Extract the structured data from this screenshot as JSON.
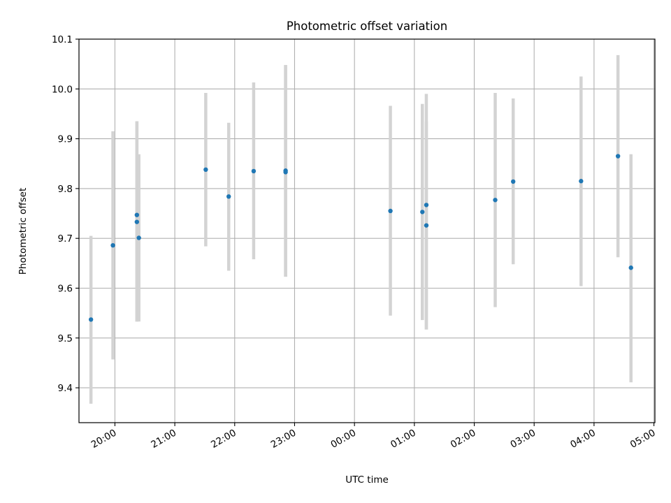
{
  "chart_data": {
    "type": "scatter",
    "title": "Photometric offset variation",
    "xlabel": "UTC time",
    "ylabel": "Photometric offset",
    "xlim": [
      "19:24",
      "05:01"
    ],
    "ylim": [
      9.33,
      10.1
    ],
    "x_ticks": [
      "20:00",
      "21:00",
      "22:00",
      "23:00",
      "00:00",
      "01:00",
      "02:00",
      "03:00",
      "04:00",
      "05:00"
    ],
    "y_ticks": [
      "9.4",
      "9.5",
      "9.6",
      "9.7",
      "9.8",
      "9.9",
      "10.0",
      "10.1"
    ],
    "grid": true,
    "error_bars": "vertical",
    "colors": {
      "points": "#1f77b4",
      "error_bars": "#d3d3d3",
      "grid": "#b0b0b0",
      "axes": "#000000"
    },
    "points": [
      {
        "x": "19:36",
        "y": 9.537,
        "y_low": 9.368,
        "y_high": 9.705
      },
      {
        "x": "19:58",
        "y": 9.686,
        "y_low": 9.457,
        "y_high": 9.915
      },
      {
        "x": "20:22",
        "y": 9.733,
        "y_low": 9.533,
        "y_high": 9.935
      },
      {
        "x": "20:22",
        "y": 9.747,
        "y_low": 9.533,
        "y_high": 9.935
      },
      {
        "x": "20:24",
        "y": 9.701,
        "y_low": 9.533,
        "y_high": 9.869
      },
      {
        "x": "21:31",
        "y": 9.838,
        "y_low": 9.684,
        "y_high": 9.992
      },
      {
        "x": "21:54",
        "y": 9.784,
        "y_low": 9.635,
        "y_high": 9.932
      },
      {
        "x": "22:19",
        "y": 9.835,
        "y_low": 9.658,
        "y_high": 10.013
      },
      {
        "x": "22:51",
        "y": 9.836,
        "y_low": 9.623,
        "y_high": 10.048
      },
      {
        "x": "22:51",
        "y": 9.833,
        "y_low": 9.623,
        "y_high": 10.048
      },
      {
        "x": "00:36",
        "y": 9.755,
        "y_low": 9.545,
        "y_high": 9.966
      },
      {
        "x": "01:08",
        "y": 9.753,
        "y_low": 9.536,
        "y_high": 9.97
      },
      {
        "x": "01:12",
        "y": 9.767,
        "y_low": 9.517,
        "y_high": 9.99
      },
      {
        "x": "01:12",
        "y": 9.726,
        "y_low": 9.517,
        "y_high": 9.935
      },
      {
        "x": "02:21",
        "y": 9.777,
        "y_low": 9.562,
        "y_high": 9.992
      },
      {
        "x": "02:39",
        "y": 9.814,
        "y_low": 9.648,
        "y_high": 9.981
      },
      {
        "x": "03:47",
        "y": 9.815,
        "y_low": 9.604,
        "y_high": 10.025
      },
      {
        "x": "04:24",
        "y": 9.865,
        "y_low": 9.662,
        "y_high": 10.068
      },
      {
        "x": "04:37",
        "y": 9.641,
        "y_low": 9.411,
        "y_high": 9.869
      }
    ]
  }
}
